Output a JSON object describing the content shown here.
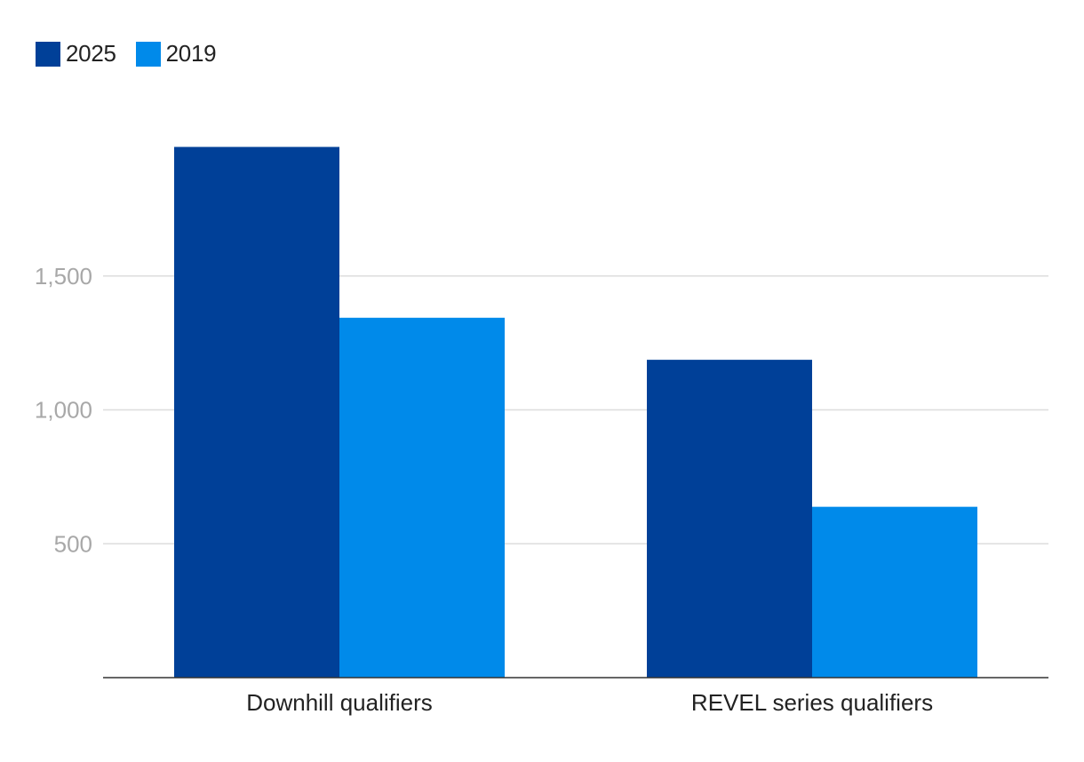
{
  "chart_data": {
    "type": "bar",
    "title": "",
    "xlabel": "",
    "ylabel": "",
    "categories": [
      "Downhill qualifiers",
      "REVEL series qualifiers"
    ],
    "series": [
      {
        "name": "2025",
        "color": "#004098",
        "values": [
          1982,
          1187
        ]
      },
      {
        "name": "2019",
        "color": "#008AEA",
        "values": [
          1344,
          638
        ]
      }
    ],
    "ylim": [
      0,
      2000
    ],
    "yticks": [
      500,
      1000,
      1500
    ],
    "ytick_labels": [
      "500",
      "1,000",
      "1,500"
    ],
    "grid": true,
    "legend_position": "top-left"
  }
}
